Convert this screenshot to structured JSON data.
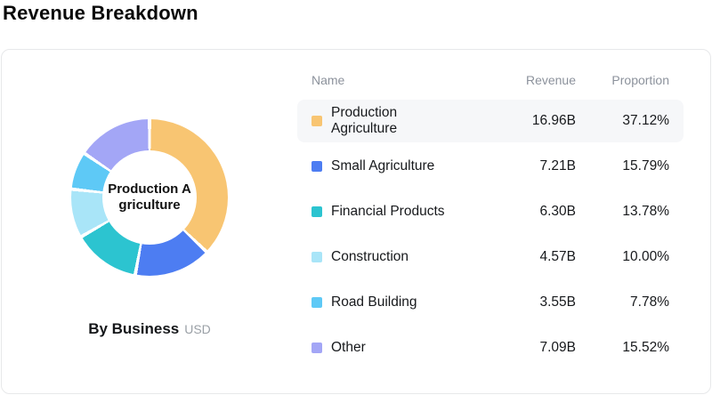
{
  "page": {
    "title": "Revenue Breakdown"
  },
  "chart": {
    "center_label": "Production Agriculture",
    "caption": "By Business",
    "caption_unit": "USD"
  },
  "table": {
    "headers": {
      "name": "Name",
      "revenue": "Revenue",
      "proportion": "Proportion"
    },
    "rows": [
      {
        "name": "Production Agriculture",
        "revenue": "16.96B",
        "proportion": "37.12%",
        "color": "#f8c572",
        "highlighted": true
      },
      {
        "name": "Small Agriculture",
        "revenue": "7.21B",
        "proportion": "15.79%",
        "color": "#4d7df2",
        "highlighted": false
      },
      {
        "name": "Financial Products",
        "revenue": "6.30B",
        "proportion": "13.78%",
        "color": "#2cc4d0",
        "highlighted": false
      },
      {
        "name": "Construction",
        "revenue": "4.57B",
        "proportion": "10.00%",
        "color": "#a9e5f8",
        "highlighted": false
      },
      {
        "name": "Road Building",
        "revenue": "3.55B",
        "proportion": "7.78%",
        "color": "#5ec9f6",
        "highlighted": false
      },
      {
        "name": "Other",
        "revenue": "7.09B",
        "proportion": "15.52%",
        "color": "#a3a6f6",
        "highlighted": false
      }
    ]
  },
  "chart_data": {
    "type": "pie",
    "donut": true,
    "title": "Revenue Breakdown",
    "subtitle": "By Business",
    "unit": "USD (billions)",
    "categories": [
      "Production Agriculture",
      "Small Agriculture",
      "Financial Products",
      "Construction",
      "Road Building",
      "Other"
    ],
    "values": [
      16.96,
      7.21,
      6.3,
      4.57,
      3.55,
      7.09
    ],
    "proportions_percent": [
      37.12,
      15.79,
      13.78,
      10.0,
      7.78,
      15.52
    ],
    "colors": [
      "#f8c572",
      "#4d7df2",
      "#2cc4d0",
      "#a9e5f8",
      "#5ec9f6",
      "#a3a6f6"
    ],
    "start_angle_deg": 0,
    "direction": "clockwise",
    "center_label": "Production Agriculture",
    "legend_position": "right-table"
  }
}
